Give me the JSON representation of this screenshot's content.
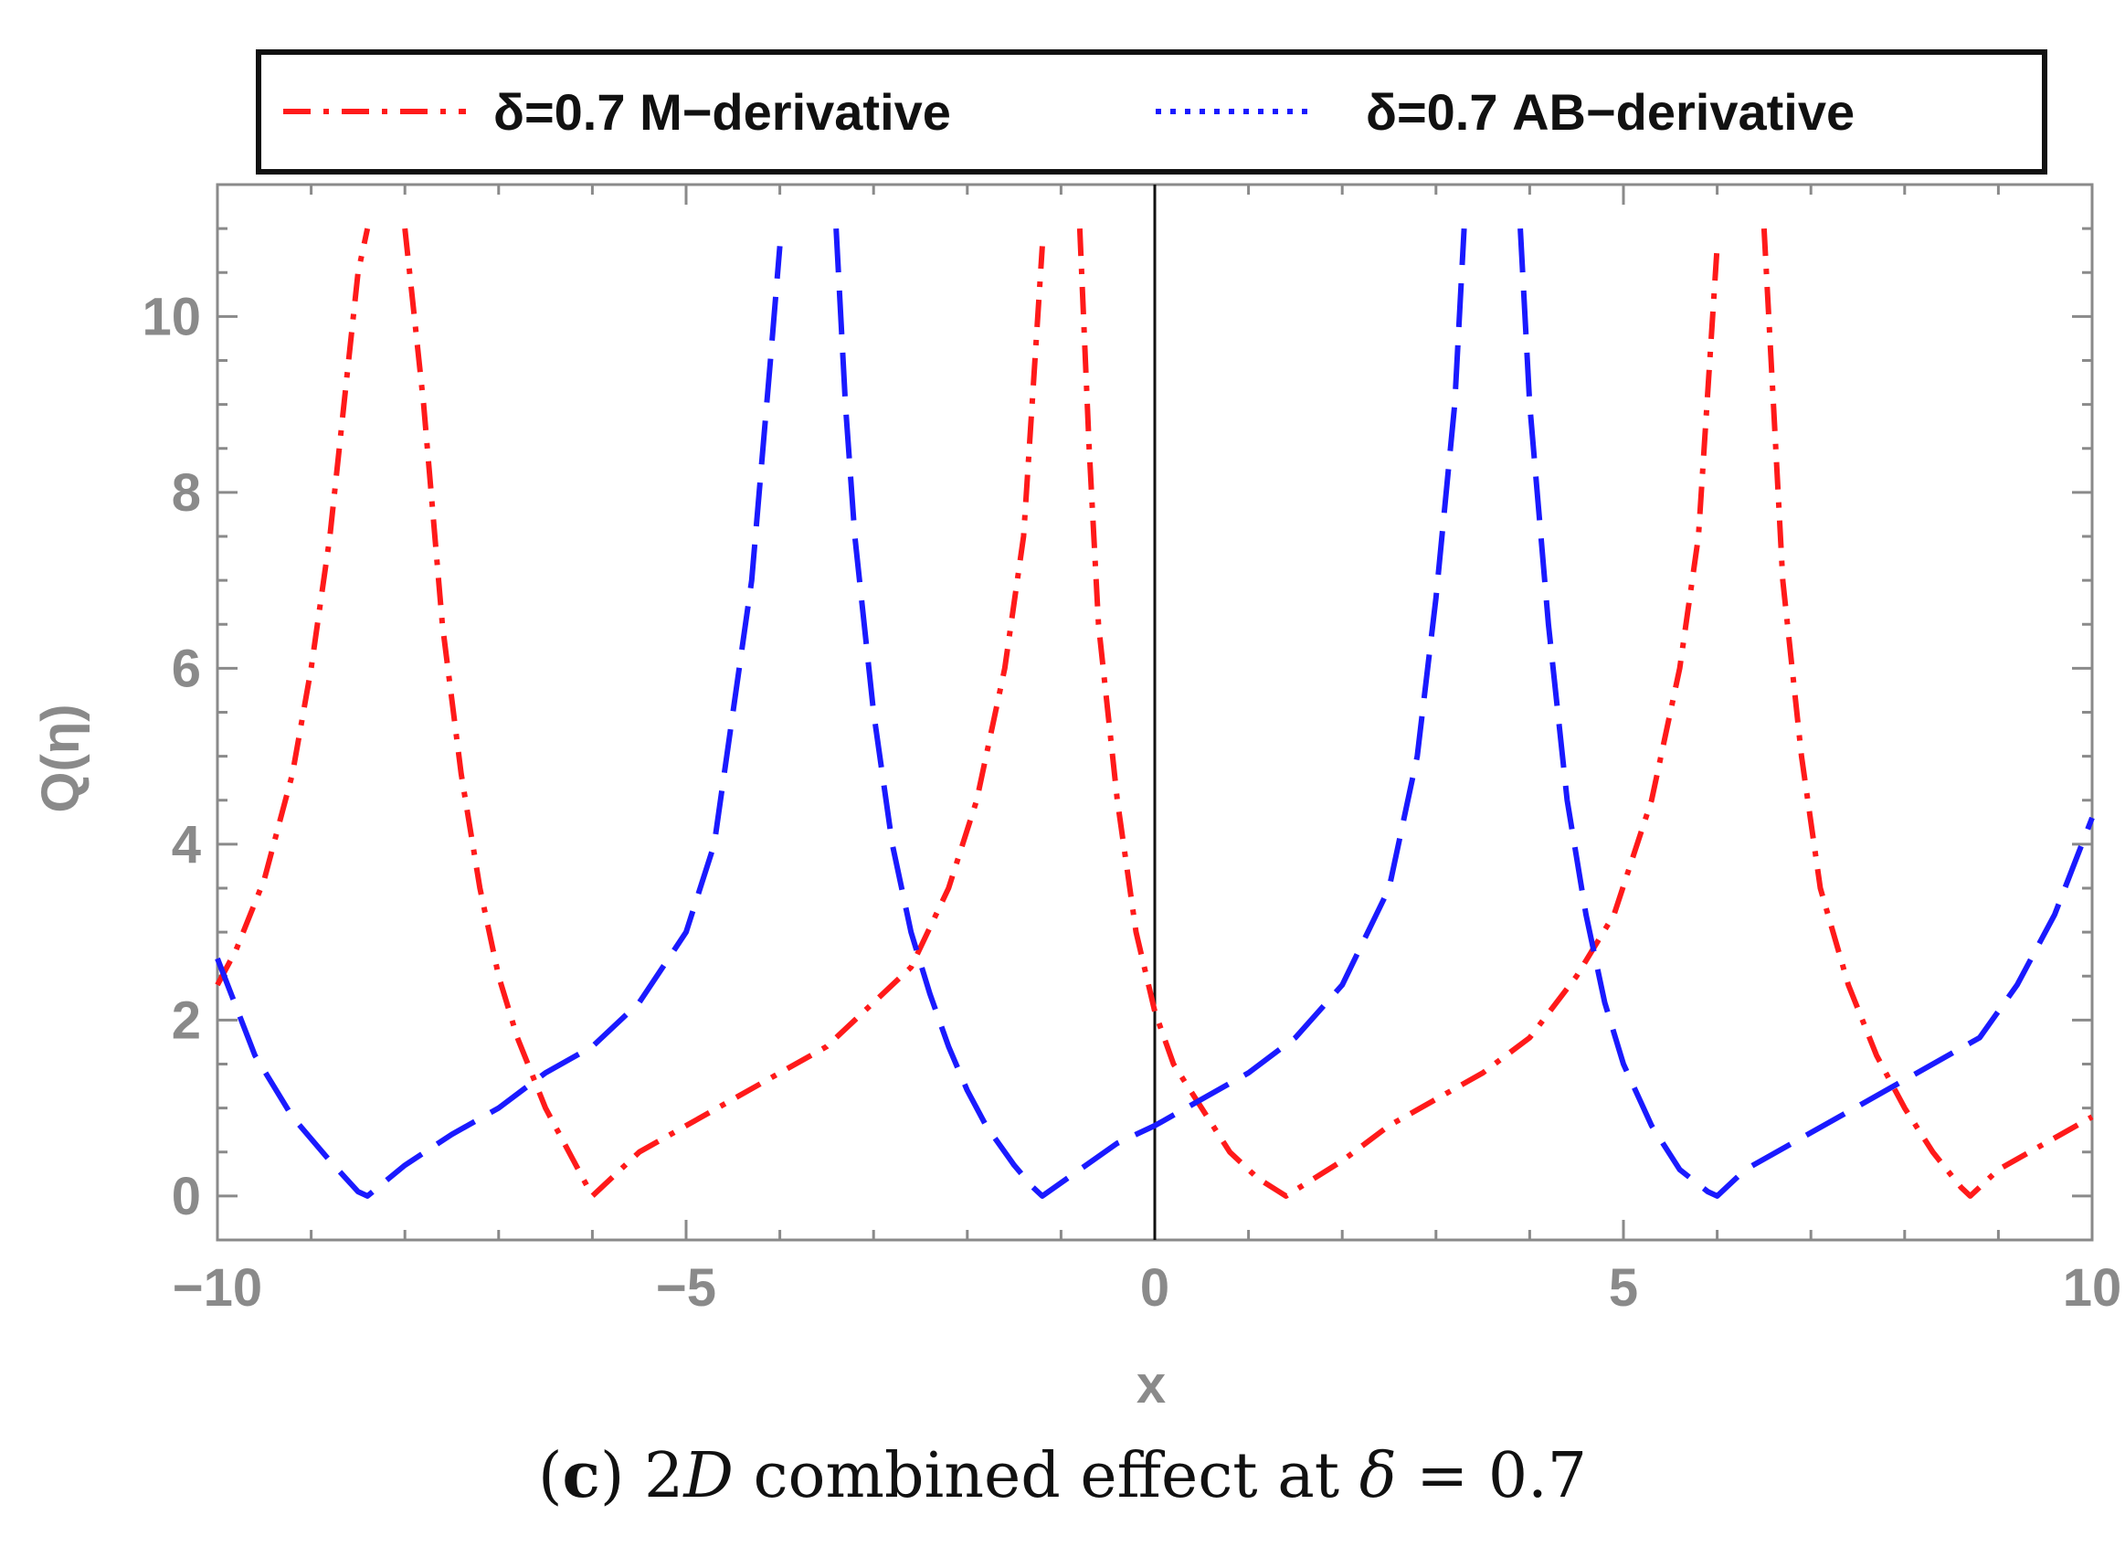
{
  "chart_data": {
    "type": "line",
    "xlabel": "x",
    "ylabel": "Q(η)",
    "xlim": [
      -10,
      10
    ],
    "ylim": [
      -0.5,
      11.5
    ],
    "xticks": [
      -10,
      -5,
      0,
      5,
      10
    ],
    "xtick_labels": [
      "−10",
      "−5",
      "0",
      "5",
      "10"
    ],
    "yticks": [
      0,
      2,
      4,
      6,
      8,
      10
    ],
    "ytick_labels": [
      "0",
      "2",
      "4",
      "6",
      "8",
      "10"
    ],
    "legend_position": "top-center, boxed above plot",
    "series": [
      {
        "name": "δ=0.7 M−derivative",
        "color": "#ff1a1a",
        "dash": "dash-dot",
        "x": [
          -10,
          -9.8,
          -9.5,
          -9.2,
          -9.0,
          -8.8,
          -8.6,
          -8.5,
          -8.4,
          null,
          -8.0,
          -7.9,
          -7.8,
          -7.6,
          -7.4,
          -7.2,
          -7.0,
          -6.8,
          -6.5,
          -6.2,
          -6.0,
          -5.5,
          -5.0,
          -4.5,
          -4.0,
          -3.5,
          -3.0,
          -2.6,
          -2.2,
          -1.9,
          -1.6,
          -1.4,
          -1.2,
          null,
          -0.8,
          -0.7,
          -0.6,
          -0.4,
          -0.2,
          0.0,
          0.2,
          0.5,
          0.8,
          1.1,
          1.4,
          2.0,
          2.5,
          3.0,
          3.5,
          4.0,
          4.5,
          4.9,
          5.3,
          5.6,
          5.8,
          6.0,
          null,
          6.5,
          6.6,
          6.7,
          6.9,
          7.1,
          7.4,
          7.7,
          8.0,
          8.3,
          8.6,
          8.7,
          9.0,
          9.5,
          10.0
        ],
        "y": [
          2.4,
          2.8,
          3.6,
          4.8,
          6.0,
          7.5,
          9.5,
          10.5,
          11.0,
          null,
          11.0,
          10.0,
          9.0,
          6.5,
          4.8,
          3.5,
          2.5,
          1.8,
          1.0,
          0.4,
          0.0,
          0.5,
          0.8,
          1.1,
          1.4,
          1.7,
          2.2,
          2.6,
          3.5,
          4.5,
          6.0,
          7.5,
          10.8,
          null,
          11.0,
          8.5,
          6.5,
          4.5,
          3.0,
          2.1,
          1.5,
          1.0,
          0.5,
          0.2,
          0.0,
          0.4,
          0.8,
          1.1,
          1.4,
          1.8,
          2.5,
          3.2,
          4.5,
          6.0,
          7.5,
          10.8,
          null,
          11.0,
          9.0,
          7.0,
          5.0,
          3.5,
          2.4,
          1.6,
          1.0,
          0.5,
          0.1,
          0.0,
          0.3,
          0.6,
          0.9
        ]
      },
      {
        "name": "δ=0.7 AB−derivative",
        "color": "#1a1aff",
        "dash": "dashed",
        "x": [
          -10,
          -9.6,
          -9.2,
          -8.8,
          -8.5,
          -8.4,
          -8.0,
          -7.5,
          -7.0,
          -6.5,
          -6.0,
          -5.5,
          -5.0,
          -4.7,
          -4.5,
          -4.3,
          -4.1,
          -4.0,
          null,
          -3.4,
          -3.3,
          -3.2,
          -3.0,
          -2.8,
          -2.6,
          -2.4,
          -2.2,
          -2.0,
          -1.8,
          -1.5,
          -1.3,
          -1.2,
          -0.8,
          -0.4,
          0.0,
          0.5,
          1.0,
          1.5,
          2.0,
          2.5,
          2.8,
          3.0,
          3.2,
          3.3,
          null,
          3.9,
          4.0,
          4.2,
          4.4,
          4.6,
          4.8,
          5.0,
          5.3,
          5.6,
          5.9,
          6.0,
          6.3,
          6.8,
          7.3,
          7.8,
          8.3,
          8.8,
          9.2,
          9.6,
          10.0
        ],
        "y": [
          2.7,
          1.6,
          0.9,
          0.4,
          0.05,
          0.0,
          0.35,
          0.7,
          1.0,
          1.4,
          1.7,
          2.2,
          3.0,
          4.0,
          5.5,
          7.0,
          9.5,
          10.8,
          null,
          11.0,
          9.0,
          7.5,
          5.5,
          4.0,
          3.0,
          2.3,
          1.7,
          1.2,
          0.8,
          0.35,
          0.1,
          0.0,
          0.3,
          0.6,
          0.8,
          1.1,
          1.4,
          1.8,
          2.4,
          3.5,
          5.0,
          6.8,
          9.0,
          11.0,
          null,
          11.0,
          9.0,
          6.5,
          4.5,
          3.2,
          2.2,
          1.5,
          0.8,
          0.3,
          0.05,
          0.0,
          0.3,
          0.6,
          0.9,
          1.2,
          1.5,
          1.8,
          2.4,
          3.2,
          4.3
        ]
      }
    ],
    "annotations": [
      "vertical line at x = 0"
    ]
  },
  "caption": {
    "label": "c",
    "text_prefix": "2",
    "text_italic": "D",
    "text_middle": " combined effect at ",
    "symbol": "δ",
    "text_suffix": " = 0.7"
  }
}
